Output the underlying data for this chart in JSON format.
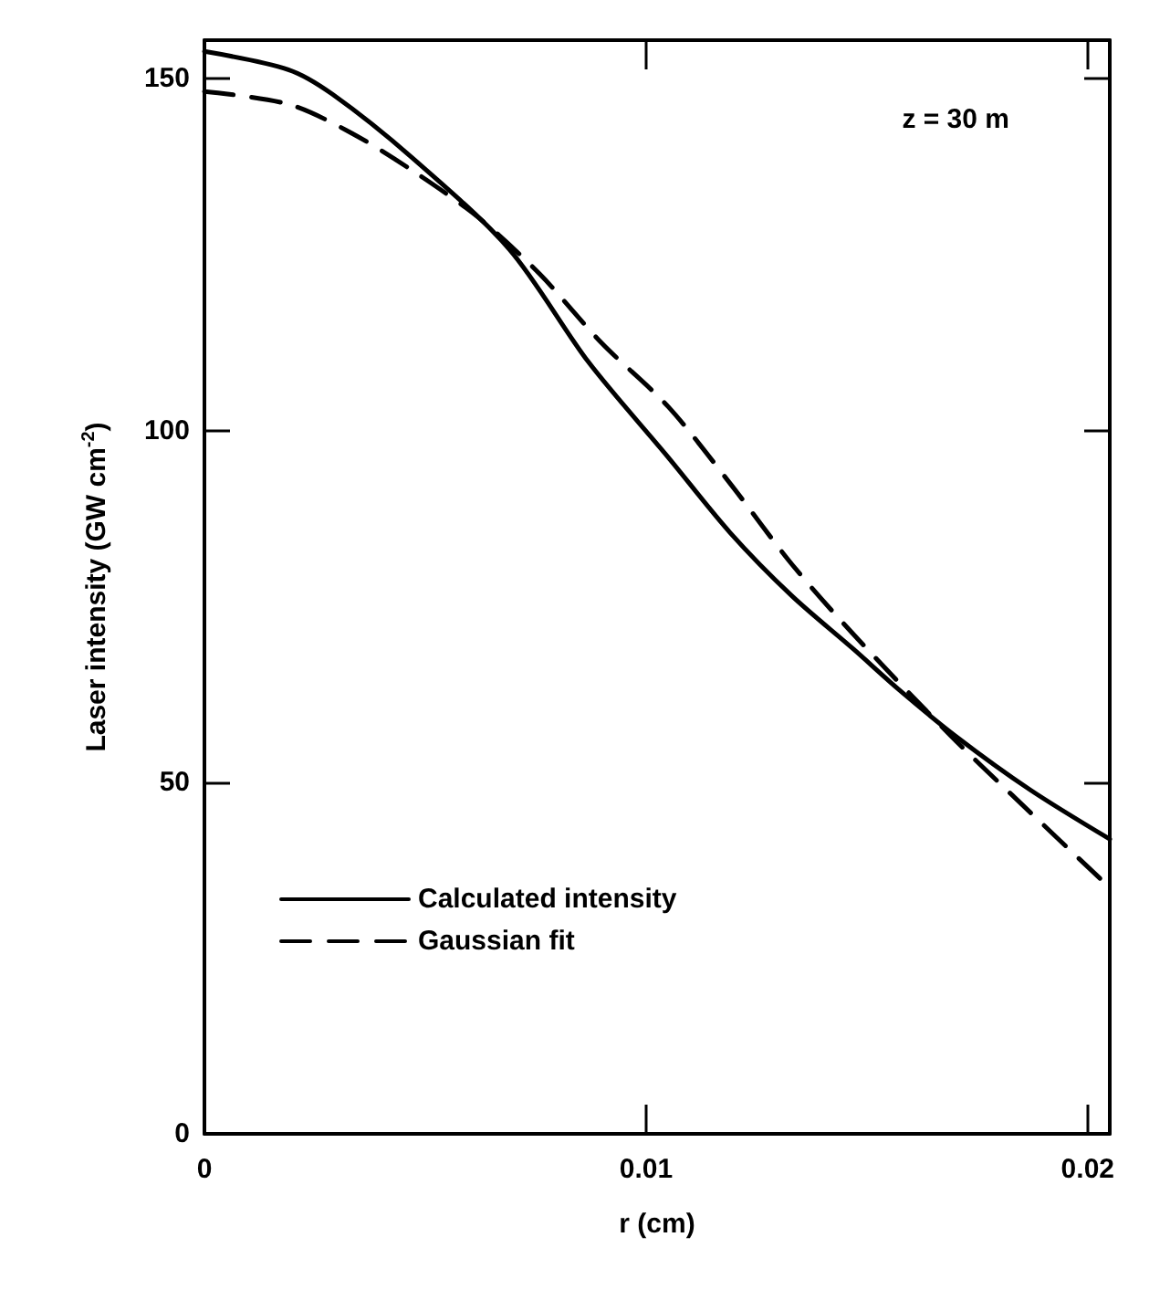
{
  "chart_data": {
    "type": "line",
    "xlabel": "r (cm)",
    "ylabel": "Laser intensity (GW cm$^{-2}$)",
    "annotations": [
      "z = 30 m"
    ],
    "xlim": [
      0,
      0.0205
    ],
    "xticks": [
      0,
      0.01,
      0.02
    ],
    "ylim": [
      0,
      155.5
    ],
    "yticks": [
      0,
      50,
      100,
      150
    ],
    "grid": false,
    "legend": "bottom left",
    "marker": "none",
    "series": [
      {
        "name": "Calculated intensity",
        "color": "#000000",
        "line_style": "solid",
        "x": [
          0,
          0.0019,
          0.0029,
          0.0047,
          0.0069,
          0.0087,
          0.0105,
          0.0119,
          0.0133,
          0.0147,
          0.0157,
          0.017,
          0.0187,
          0.0205
        ],
        "values": [
          153.9,
          151.3,
          147.8,
          138.8,
          125.8,
          109.7,
          96.2,
          85.5,
          76.5,
          68.9,
          63.3,
          56.6,
          48.9,
          41.9
        ]
      },
      {
        "name": "Gaussian fit",
        "color": "#000000",
        "line_style": "dashed",
        "x": [
          0,
          0.0019,
          0.0033,
          0.0047,
          0.0062,
          0.0076,
          0.009,
          0.0105,
          0.0119,
          0.0133,
          0.0147,
          0.0169,
          0.0183,
          0.0205
        ],
        "values": [
          148.2,
          146.4,
          142.4,
          137,
          130.3,
          122.2,
          112.4,
          103.4,
          92.5,
          81,
          71,
          56.6,
          48.1,
          35
        ]
      }
    ]
  }
}
